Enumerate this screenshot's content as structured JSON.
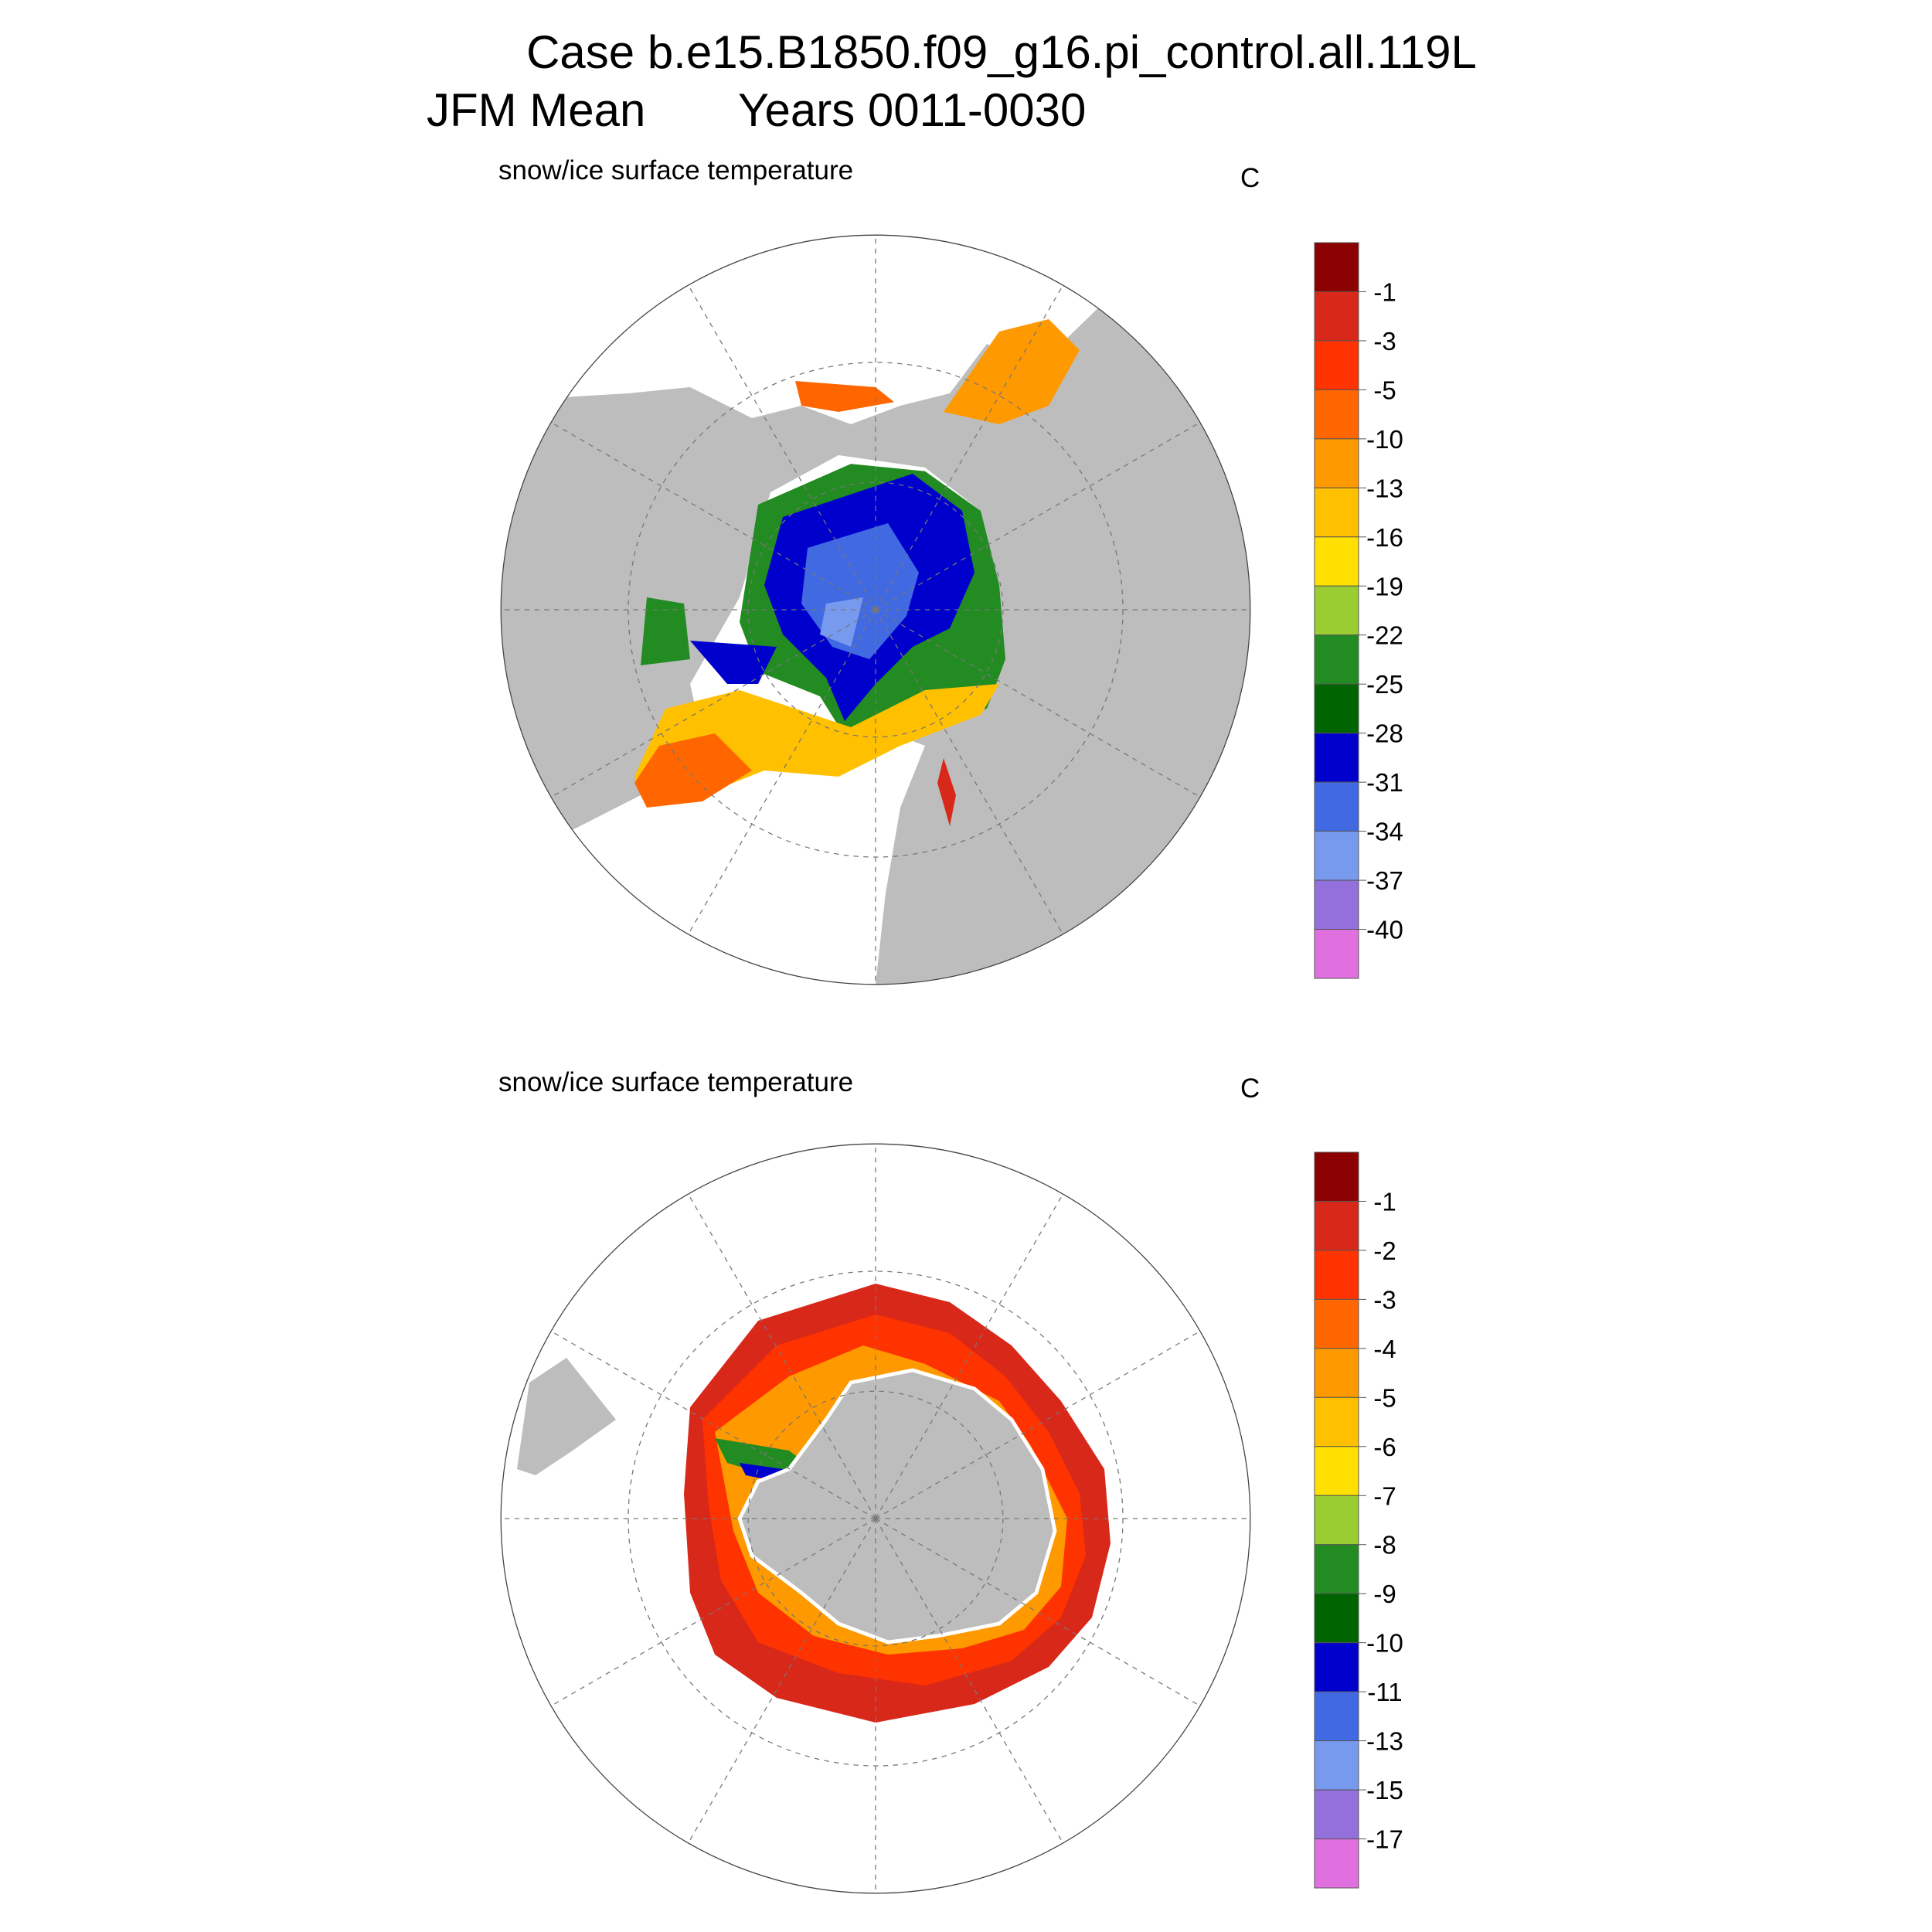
{
  "header": {
    "case": "Case b.e15.B1850.f09_g16.pi_control.all.119L",
    "period": "JFM Mean",
    "years": "Years 0011-0030"
  },
  "panels": [
    {
      "subtitle": "snow/ice surface temperature",
      "units": "C",
      "colorbar": {
        "labels": [
          -1,
          -3,
          -5,
          -10,
          -13,
          -16,
          -19,
          -22,
          -25,
          -28,
          -31,
          -34,
          -37,
          -40
        ],
        "colors": [
          "#8b0000",
          "#d8281a",
          "#ff3300",
          "#ff6600",
          "#ff9900",
          "#ffc000",
          "#ffe000",
          "#9acd32",
          "#228b22",
          "#006400",
          "#0000cd",
          "#4169e1",
          "#7799ee",
          "#9370db",
          "#e070e0"
        ]
      }
    },
    {
      "subtitle": "snow/ice surface temperature",
      "units": "C",
      "colorbar": {
        "labels": [
          -1,
          -2,
          -3,
          -4,
          -5,
          -6,
          -7,
          -8,
          -9,
          -10,
          -11,
          -13,
          -15,
          -17
        ],
        "colors": [
          "#8b0000",
          "#d8281a",
          "#ff3300",
          "#ff6600",
          "#ff9900",
          "#ffc000",
          "#ffe000",
          "#9acd32",
          "#228b22",
          "#006400",
          "#0000cd",
          "#4169e1",
          "#7799ee",
          "#9370db",
          "#e070e0"
        ]
      }
    }
  ]
}
